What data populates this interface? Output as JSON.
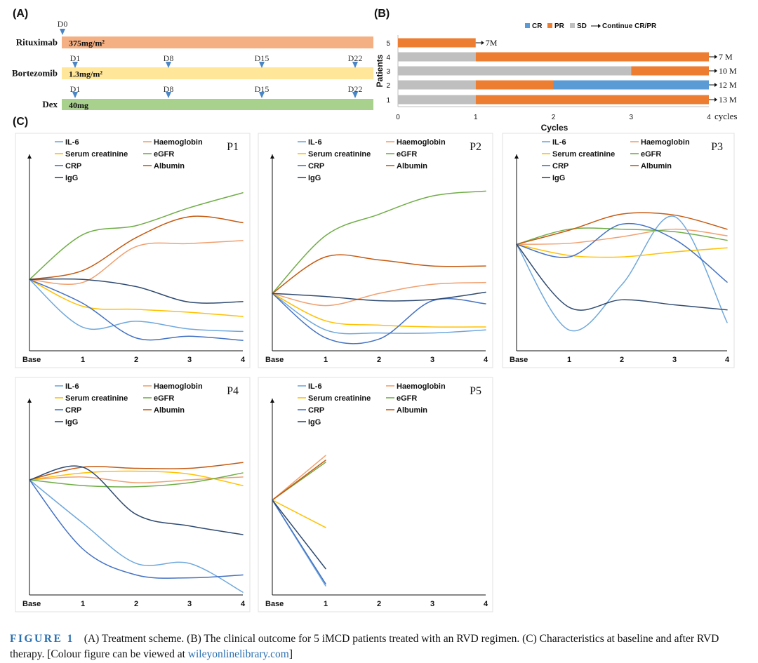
{
  "panel_labels": {
    "a": "(A)",
    "b": "(B)",
    "c": "(C)"
  },
  "chart_data": [
    {
      "type": "timeline",
      "title": "(A) Treatment scheme",
      "day_range": [
        0,
        22
      ],
      "drugs": [
        {
          "name": "Rituximab",
          "dose": "375mg/m²",
          "color": "#f4b083",
          "markers": [
            {
              "label": "D0",
              "day": 0
            }
          ]
        },
        {
          "name": "Bortezomib",
          "dose": "1.3mg/m²",
          "color": "#ffe699",
          "markers": [
            {
              "label": "D1",
              "day": 1
            },
            {
              "label": "D8",
              "day": 8
            },
            {
              "label": "D15",
              "day": 15
            },
            {
              "label": "D22",
              "day": 22
            }
          ]
        },
        {
          "name": "Dex",
          "dose": "40mg",
          "color": "#a9d18e",
          "markers": [
            {
              "label": "D1",
              "day": 1
            },
            {
              "label": "D8",
              "day": 8
            },
            {
              "label": "D15",
              "day": 15
            },
            {
              "label": "D22",
              "day": 22
            }
          ]
        }
      ]
    },
    {
      "type": "bar",
      "orientation": "horizontal",
      "stacked": true,
      "title": "(B) Clinical outcome",
      "xlabel": "Cycles",
      "ylabel": "Patients",
      "xlim": [
        0,
        4
      ],
      "x_ticks": [
        "0",
        "1",
        "2",
        "3",
        "4"
      ],
      "x_tick_suffix": "cycles",
      "legend": [
        {
          "label": "CR",
          "color": "#5b9bd5"
        },
        {
          "label": "PR",
          "color": "#ed7d31"
        },
        {
          "label": "SD",
          "color": "#bfbfbf"
        }
      ],
      "legend_arrow_label": "Continue CR/PR",
      "patients": [
        {
          "id": "5",
          "segments": [
            {
              "status": "PR",
              "from": 0,
              "to": 1
            }
          ],
          "continue": "7M"
        },
        {
          "id": "4",
          "segments": [
            {
              "status": "SD",
              "from": 0,
              "to": 1
            },
            {
              "status": "PR",
              "from": 1,
              "to": 4
            }
          ],
          "continue": "7 M"
        },
        {
          "id": "3",
          "segments": [
            {
              "status": "SD",
              "from": 0,
              "to": 3
            },
            {
              "status": "PR",
              "from": 3,
              "to": 4
            }
          ],
          "continue": "10 M"
        },
        {
          "id": "2",
          "segments": [
            {
              "status": "SD",
              "from": 0,
              "to": 1
            },
            {
              "status": "PR",
              "from": 1,
              "to": 2
            },
            {
              "status": "CR",
              "from": 2,
              "to": 4
            }
          ],
          "continue": "12 M"
        },
        {
          "id": "1",
          "segments": [
            {
              "status": "SD",
              "from": 0,
              "to": 1
            },
            {
              "status": "PR",
              "from": 1,
              "to": 4
            }
          ],
          "continue": "13 M"
        }
      ]
    },
    {
      "type": "line",
      "title": "(C) Characteristics at baseline and after RVD therapy",
      "x_ticks": [
        "Base",
        "1",
        "2",
        "3",
        "4"
      ],
      "y_axis": "relative level, baseline = 0 (unlabelled)",
      "series_meta": [
        {
          "name": "IL-6",
          "color": "#6fa8dc"
        },
        {
          "name": "Haemoglobin",
          "color": "#f0a070"
        },
        {
          "name": "Serum creatinine",
          "color": "#ffc000"
        },
        {
          "name": "eGFR",
          "color": "#70ad47"
        },
        {
          "name": "CRP",
          "color": "#4472c4"
        },
        {
          "name": "Albumin",
          "color": "#c55a11"
        },
        {
          "name": "IgG",
          "color": "#2f4a70"
        }
      ],
      "panels": [
        {
          "label": "P1",
          "ylim": [
            -1.1,
            1.6
          ],
          "series": {
            "IL-6": [
              0,
              -0.8,
              -0.7,
              -0.83,
              -0.87
            ],
            "Haemoglobin": [
              0,
              -0.05,
              0.55,
              0.6,
              0.65
            ],
            "Serum creatinine": [
              0,
              -0.45,
              -0.5,
              -0.55,
              -0.62
            ],
            "eGFR": [
              0,
              0.75,
              0.9,
              1.2,
              1.45
            ],
            "CRP": [
              0,
              -0.4,
              -0.98,
              -0.95,
              -1.02
            ],
            "Albumin": [
              0,
              0.15,
              0.7,
              1.05,
              0.95
            ],
            "IgG": [
              0,
              0.0,
              -0.12,
              -0.38,
              -0.37
            ]
          }
        },
        {
          "label": "P2",
          "ylim": [
            -0.85,
            1.8
          ],
          "series": {
            "IL-6": [
              0,
              -0.6,
              -0.65,
              -0.65,
              -0.6
            ],
            "Haemoglobin": [
              0,
              -0.2,
              -0.0,
              0.15,
              0.18
            ],
            "Serum creatinine": [
              0,
              -0.45,
              -0.52,
              -0.55,
              -0.55
            ],
            "eGFR": [
              0,
              0.95,
              1.3,
              1.6,
              1.68
            ],
            "CRP": [
              0,
              -0.73,
              -0.75,
              -0.12,
              -0.17
            ],
            "Albumin": [
              0,
              0.6,
              0.55,
              0.45,
              0.45
            ],
            "IgG": [
              0,
              -0.05,
              -0.12,
              -0.1,
              0.02
            ]
          }
        },
        {
          "label": "P3",
          "ylim": [
            -2.0,
            1.2
          ],
          "series": {
            "IL-6": [
              0,
              -1.7,
              -0.8,
              0.55,
              -1.55
            ],
            "Haemoglobin": [
              0,
              0.02,
              0.15,
              0.3,
              0.17
            ],
            "Serum creatinine": [
              0,
              -0.22,
              -0.25,
              -0.15,
              -0.07
            ],
            "eGFR": [
              0,
              0.3,
              0.3,
              0.25,
              0.08
            ],
            "CRP": [
              0,
              -0.25,
              0.4,
              0.1,
              -0.75
            ],
            "Albumin": [
              0,
              0.28,
              0.6,
              0.58,
              0.3
            ],
            "IgG": [
              0,
              -1.25,
              -1.1,
              -1.2,
              -1.3
            ]
          }
        },
        {
          "label": "P4",
          "ylim": [
            -1.9,
            0.9
          ],
          "series": {
            "IL-6": [
              0,
              -0.75,
              -1.45,
              -1.45,
              -1.95
            ],
            "Haemoglobin": [
              0,
              0.05,
              -0.05,
              0.0,
              0.05
            ],
            "Serum creatinine": [
              0,
              0.12,
              0.15,
              0.1,
              -0.1
            ],
            "eGFR": [
              0,
              -0.1,
              -0.12,
              -0.05,
              0.12
            ],
            "CRP": [
              0,
              -1.2,
              -1.65,
              -1.7,
              -1.65
            ],
            "Albumin": [
              0,
              0.22,
              0.2,
              0.2,
              0.3
            ],
            "IgG": [
              0,
              0.22,
              -0.6,
              -0.8,
              -0.95
            ]
          }
        },
        {
          "label": "P5",
          "ylim": [
            -1.3,
            1.05
          ],
          "series": {
            "IL-6": [
              0,
              -1.25
            ],
            "Haemoglobin": [
              0,
              0.65
            ],
            "Serum creatinine": [
              0,
              -0.4
            ],
            "eGFR": [
              0,
              0.55
            ],
            "CRP": [
              0,
              -1.22
            ],
            "Albumin": [
              0,
              0.58
            ],
            "IgG": [
              0,
              -1.0
            ]
          }
        }
      ]
    }
  ],
  "caption": {
    "label": "FIGURE 1",
    "text": "(A) Treatment scheme. (B) The clinical outcome for 5 iMCD patients treated with an RVD regimen. (C) Characteristics at baseline and after RVD therapy. [Colour figure can be viewed at ",
    "link": "wileyonlinelibrary.com",
    "end": "]"
  }
}
